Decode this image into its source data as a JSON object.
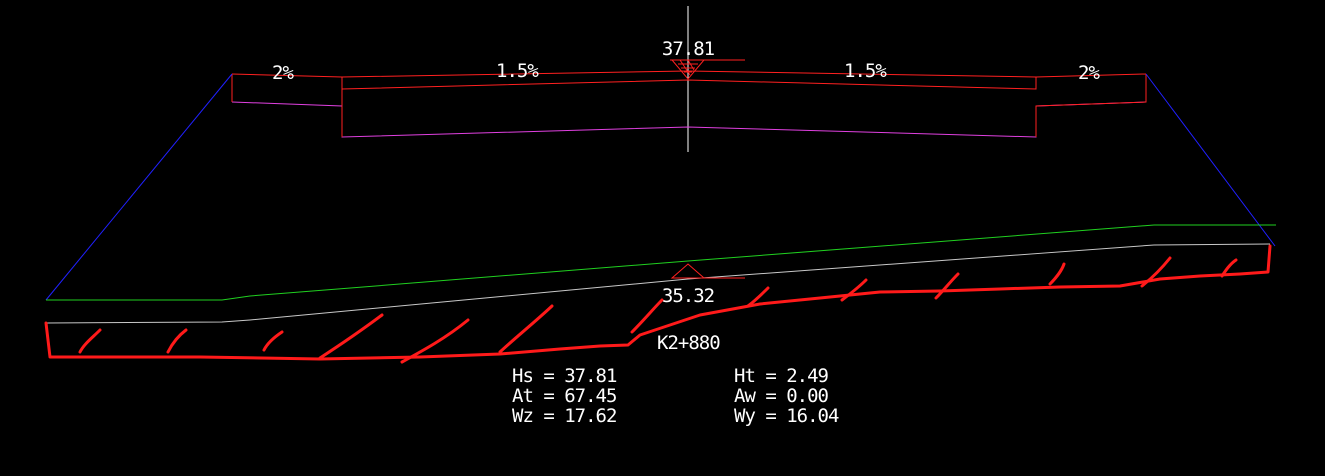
{
  "design": {
    "crown_elevation": "37.81",
    "slopes": {
      "left_shoulder": "2%",
      "left_lane": "1.5%",
      "right_lane": "1.5%",
      "right_shoulder": "2%"
    }
  },
  "ground": {
    "center_elevation": "35.32"
  },
  "station": "K2+880",
  "stats": {
    "hs": "Hs = 37.81",
    "at": "At = 67.45",
    "wz": "Wz = 17.62",
    "ht": "Ht = 2.49",
    "aw": "Aw = 0.00",
    "wy": "Wy = 16.04"
  },
  "colors": {
    "background": "#000000",
    "pavement_top": "#ff2020",
    "pavement_bottom": "#e040e0",
    "fill_slope": "#2020ff",
    "ground_line": "#20d020",
    "stripped_ground": "#c8c8c8",
    "annotation_red": "#ff1a1a",
    "text": "#ffffff"
  }
}
